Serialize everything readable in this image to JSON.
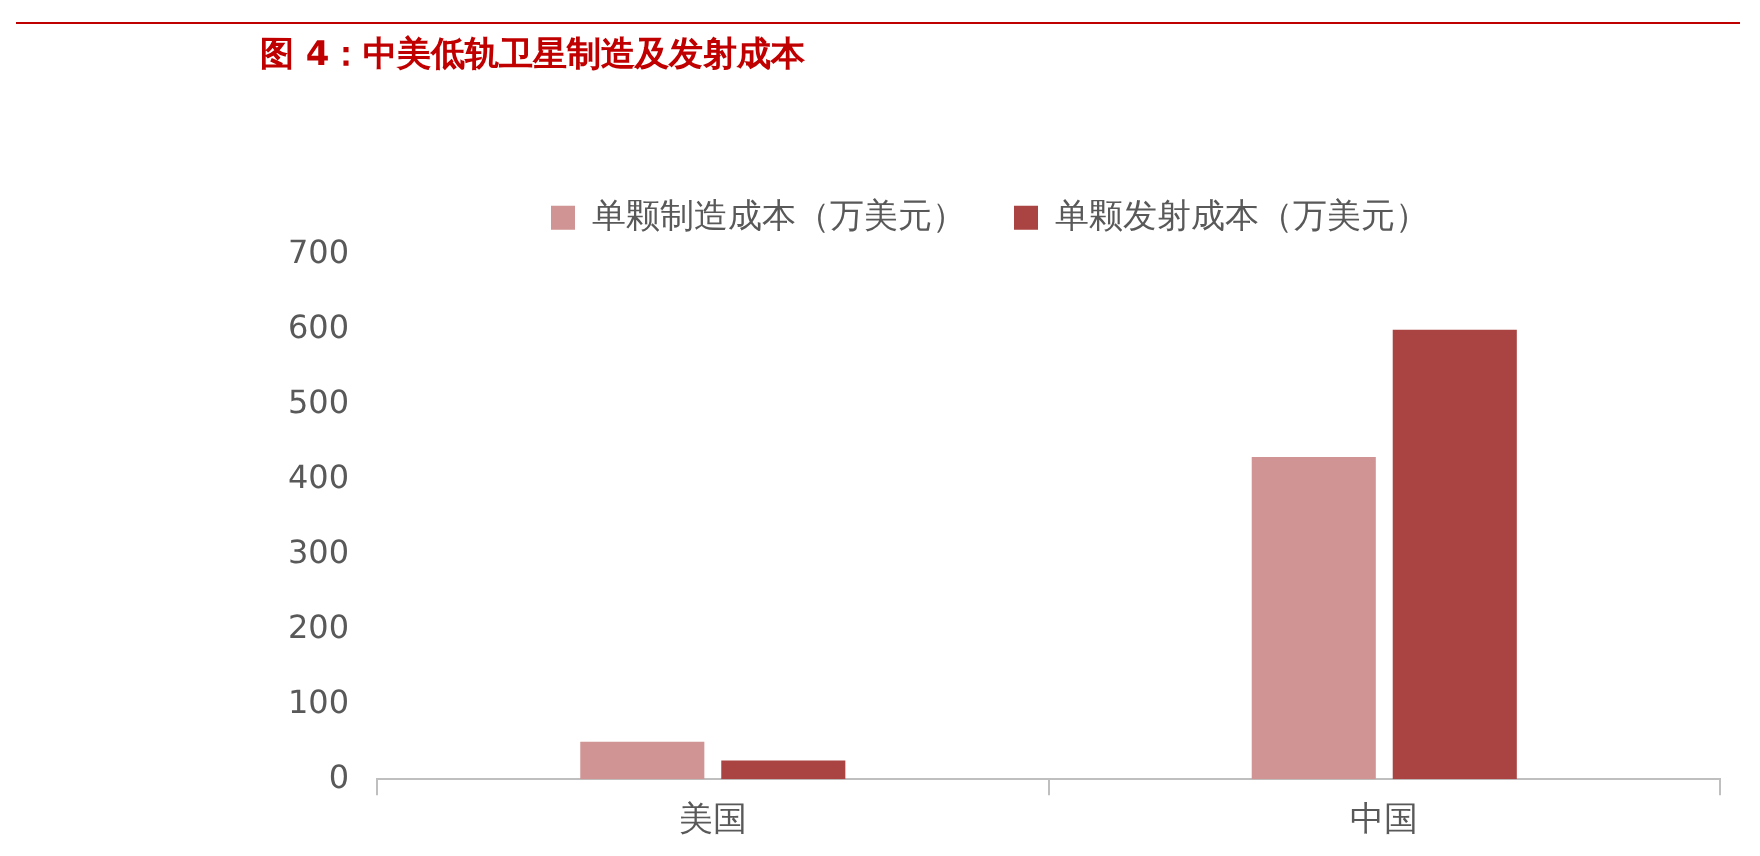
{
  "chart_data": {
    "type": "bar",
    "title": "图 4：中美低轨卫星制造及发射成本",
    "categories": [
      "美国",
      "中国"
    ],
    "series": [
      {
        "name": "单颗制造成本（万美元）",
        "color": "#d09494",
        "values": [
          50,
          430
        ]
      },
      {
        "name": "单颗发射成本（万美元）",
        "color": "#a94442",
        "values": [
          25,
          600
        ]
      }
    ],
    "ylim": [
      0,
      700
    ],
    "yticks": [
      0,
      100,
      200,
      300,
      400,
      500,
      600,
      700
    ],
    "grid": false,
    "legend": "top"
  }
}
